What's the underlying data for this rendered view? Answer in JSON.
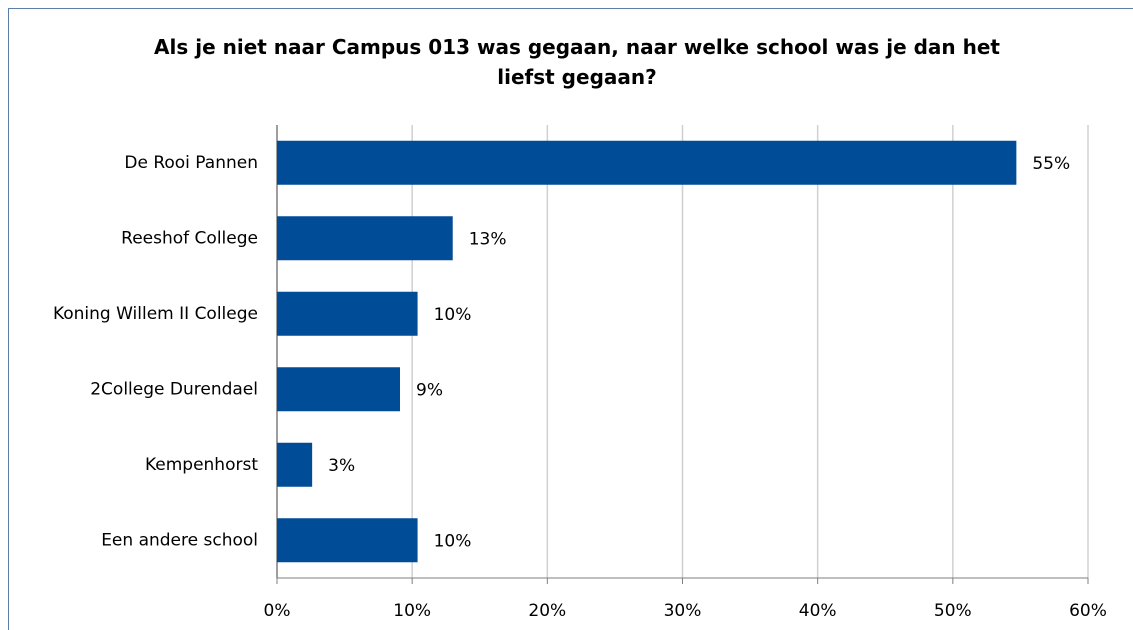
{
  "chart_data": {
    "type": "bar",
    "orientation": "horizontal",
    "title": "Als je niet naar Campus 013 was gegaan, naar welke school was je dan het liefst gegaan?",
    "categories": [
      "De Rooi Pannen",
      "Reeshof College",
      "Koning Willem II College",
      "2College Durendael",
      "Kempenhorst",
      "Een andere school"
    ],
    "values": [
      54.7,
      13.0,
      10.4,
      9.1,
      2.6,
      10.4
    ],
    "value_labels": [
      "55%",
      "13%",
      "10%",
      "9%",
      "3%",
      "10%"
    ],
    "color": "#004c97",
    "xlim": [
      0,
      60
    ],
    "xticks": [
      {
        "value": 0,
        "label": "0%"
      },
      {
        "value": 10,
        "label": "10%"
      },
      {
        "value": 20,
        "label": "20%"
      },
      {
        "value": 30,
        "label": "30%"
      },
      {
        "value": 40,
        "label": "40%"
      },
      {
        "value": 50,
        "label": "50%"
      },
      {
        "value": 60,
        "label": "60%"
      }
    ],
    "grid": true
  }
}
